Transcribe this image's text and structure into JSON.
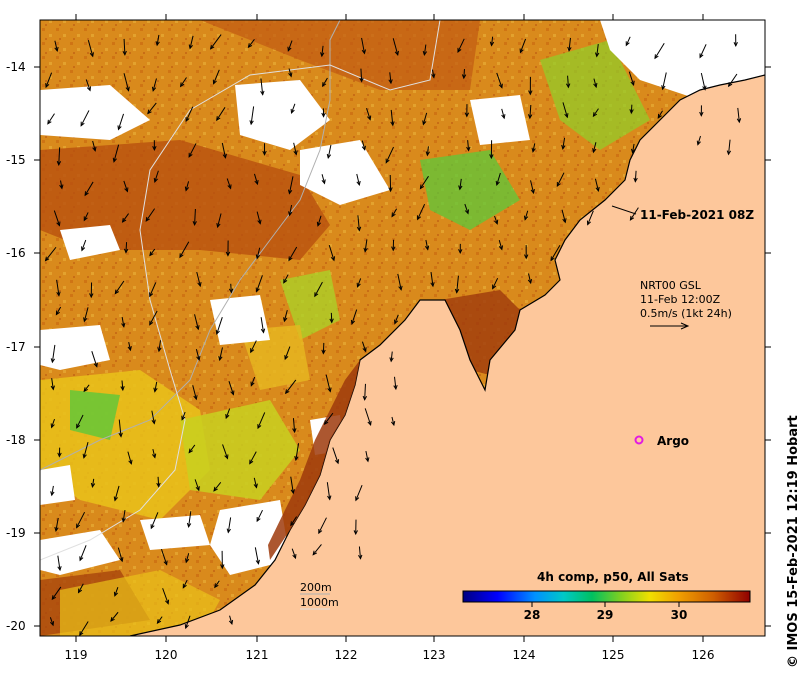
{
  "map": {
    "x_ticks": [
      "119",
      "120",
      "121",
      "122",
      "123",
      "124",
      "125",
      "126"
    ],
    "y_ticks": [
      "-14",
      "-15",
      "-16",
      "-17",
      "-18",
      "-19",
      "-20"
    ],
    "title_date": "11-Feb-2021 08Z",
    "current_source": "NRT00 GSL",
    "current_time": "11-Feb 12:00Z",
    "current_scale": "0.5m/s (1kt 24h)",
    "argo_label": "Argo",
    "depth_200": "200m",
    "depth_1000": "1000m",
    "credit": "© IMOS 15-Feb-2021 12:19 Hobart"
  },
  "legend": {
    "title": "4h comp, p50, All Sats",
    "ticks": [
      "28",
      "29",
      "30"
    ]
  },
  "colors": {
    "land": "#fdc79b",
    "sst_warm": "#d98a1c",
    "sst_hot": "#b8500f",
    "sst_cool": "#e9c21a",
    "sst_green": "#5cc83a",
    "cloud": "#ffffff",
    "argo": "#e21ae2"
  }
}
